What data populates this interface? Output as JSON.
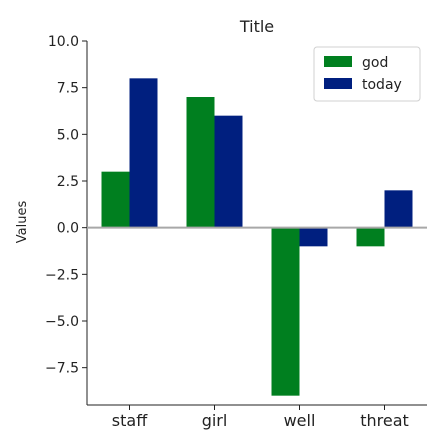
{
  "chart_data": {
    "type": "bar",
    "title": "Title",
    "xlabel": "",
    "ylabel": "Values",
    "categories": [
      "staff",
      "girl",
      "well",
      "threat"
    ],
    "series": [
      {
        "name": "god",
        "color": "#007f1f",
        "values": [
          3,
          7,
          -9,
          -1
        ]
      },
      {
        "name": "today",
        "color": "#001f7f",
        "values": [
          8,
          6,
          -1,
          2
        ]
      }
    ],
    "ylim": [
      -9.5,
      10
    ],
    "yticks": [
      10.0,
      7.5,
      5.0,
      2.5,
      0.0,
      -2.5,
      -5.0,
      -7.5
    ],
    "ytick_labels": [
      "10.0",
      "7.5",
      "5.0",
      "2.5",
      "0.0",
      "−2.5",
      "−5.0",
      "−7.5"
    ],
    "grid": false,
    "zero_line": true,
    "legend_position": "top-right"
  }
}
